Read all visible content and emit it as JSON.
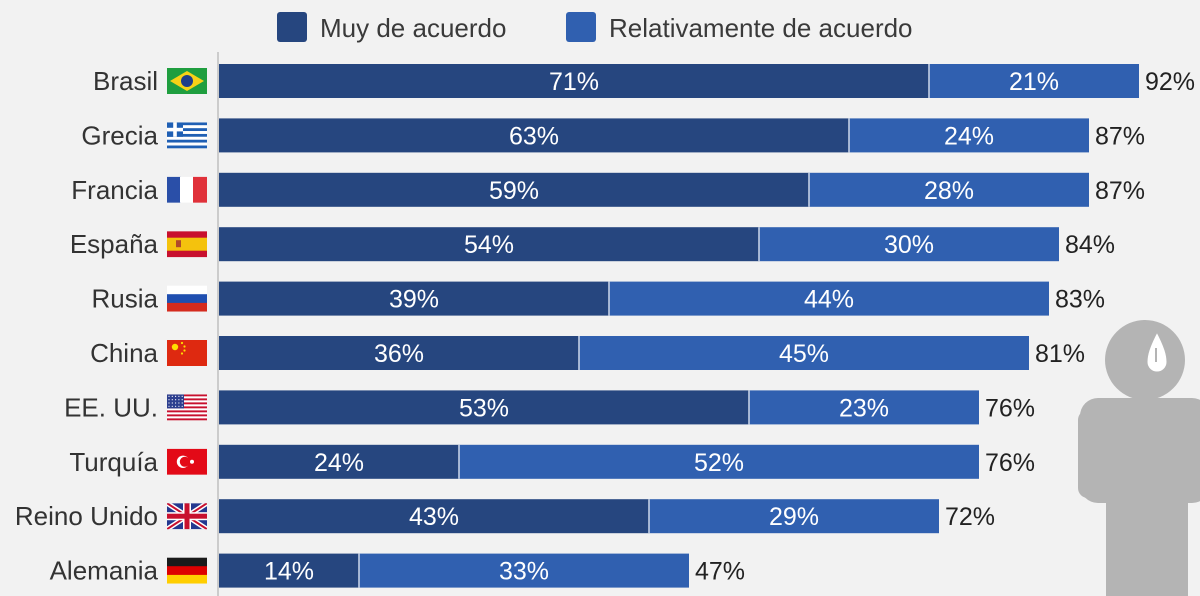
{
  "chart_data": {
    "type": "bar",
    "orientation": "horizontal",
    "stacked": true,
    "categories": [
      "Brasil",
      "Grecia",
      "Francia",
      "España",
      "Rusia",
      "China",
      "EE. UU.",
      "Turquía",
      "Reino Unido",
      "Alemania"
    ],
    "series": [
      {
        "name": "Muy de acuerdo",
        "values": [
          71,
          63,
          59,
          54,
          39,
          36,
          53,
          24,
          43,
          14
        ],
        "color": "#26467f"
      },
      {
        "name": "Relativamente de acuerdo",
        "values": [
          21,
          24,
          28,
          30,
          44,
          45,
          23,
          52,
          29,
          33
        ],
        "color": "#3060b0"
      }
    ],
    "totals": [
      92,
      87,
      87,
      84,
      83,
      81,
      76,
      76,
      72,
      47
    ],
    "segment_labels": [
      [
        "71%",
        "63%",
        "59%",
        "54%",
        "39%",
        "36%",
        "53%",
        "24%",
        "43%",
        "14%"
      ],
      [
        "21%",
        "24%",
        "28%",
        "30%",
        "44%",
        "45%",
        "23%",
        "52%",
        "29%",
        "33%"
      ]
    ],
    "total_labels": [
      "92%",
      "87%",
      "87%",
      "84%",
      "83%",
      "81%",
      "76%",
      "76%",
      "72%",
      "47%"
    ],
    "flags": [
      "flag-brazil-icon",
      "flag-greece-icon",
      "flag-france-icon",
      "flag-spain-icon",
      "flag-russia-icon",
      "flag-china-icon",
      "flag-usa-icon",
      "flag-turkey-icon",
      "flag-uk-icon",
      "flag-germany-icon"
    ],
    "xlim": [
      0,
      100
    ],
    "legend_position": "top",
    "grid": false,
    "decoration": "person-icon"
  }
}
